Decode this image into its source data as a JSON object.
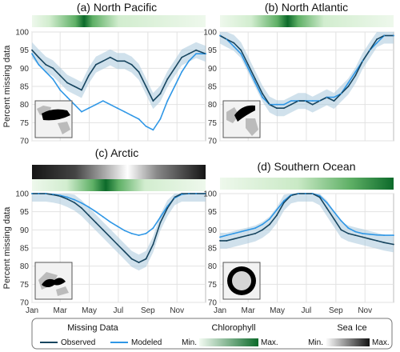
{
  "chart_data": [
    {
      "type": "line",
      "title": "(a) North Pacific",
      "ylabel": "Percent missing data",
      "ylim": [
        70,
        100
      ],
      "xlim": [
        1,
        365
      ],
      "top_bar": "chlorophyll",
      "top_bar_peak": [
        0.25,
        0.35
      ],
      "inset_map": "north-pacific",
      "series": [
        {
          "name": "Observed",
          "x": [
            1,
            15,
            30,
            45,
            60,
            75,
            90,
            105,
            120,
            135,
            150,
            165,
            180,
            195,
            210,
            225,
            240,
            255,
            270,
            285,
            300,
            315,
            330,
            345,
            365
          ],
          "values": [
            95,
            93,
            91,
            90,
            88,
            86,
            85,
            84,
            88,
            91,
            92,
            93,
            92,
            92,
            91,
            89,
            85,
            81,
            83,
            87,
            90,
            93,
            94,
            95,
            94
          ]
        },
        {
          "name": "Modeled",
          "x": [
            1,
            15,
            30,
            45,
            60,
            75,
            90,
            105,
            120,
            135,
            150,
            165,
            180,
            195,
            210,
            225,
            240,
            255,
            270,
            285,
            300,
            315,
            330,
            345,
            365
          ],
          "values": [
            94,
            91,
            89,
            87,
            84,
            82,
            80,
            78,
            79,
            80,
            81,
            80,
            79,
            78,
            77,
            76,
            74,
            73,
            76,
            81,
            85,
            89,
            92,
            94,
            94
          ]
        }
      ]
    },
    {
      "type": "line",
      "title": "(b) North Atlantic",
      "ylabel": "",
      "ylim": [
        70,
        100
      ],
      "xlim": [
        1,
        365
      ],
      "top_bar": "chlorophyll",
      "top_bar_peak": [
        0.33,
        0.45
      ],
      "inset_map": "north-atlantic",
      "series": [
        {
          "name": "Observed",
          "x": [
            1,
            15,
            30,
            45,
            60,
            75,
            90,
            105,
            120,
            135,
            150,
            165,
            180,
            195,
            210,
            225,
            240,
            255,
            270,
            285,
            300,
            315,
            330,
            345,
            365
          ],
          "values": [
            99,
            98,
            97,
            95,
            91,
            87,
            83,
            80,
            79,
            79,
            80,
            81,
            81,
            80,
            81,
            82,
            81,
            83,
            85,
            88,
            92,
            95,
            98,
            99,
            99
          ]
        },
        {
          "name": "Modeled",
          "x": [
            1,
            15,
            30,
            45,
            60,
            75,
            90,
            105,
            120,
            135,
            150,
            165,
            180,
            195,
            210,
            225,
            240,
            255,
            270,
            285,
            300,
            315,
            330,
            345,
            365
          ],
          "values": [
            99,
            98,
            96,
            94,
            90,
            86,
            82,
            80,
            80,
            80,
            81,
            81,
            81,
            81,
            81,
            82,
            82,
            83,
            86,
            89,
            92,
            95,
            97,
            99,
            99
          ]
        }
      ]
    },
    {
      "type": "line",
      "title": "(c) Arctic",
      "ylabel": "Percent missing data",
      "ylim": [
        70,
        100
      ],
      "xlim": [
        1,
        365
      ],
      "top_bar": "chlorophyll",
      "top_bar_peak": [
        0.35,
        0.5
      ],
      "sea_ice_bar": true,
      "inset_map": "arctic",
      "series": [
        {
          "name": "Observed",
          "x": [
            1,
            15,
            30,
            45,
            60,
            75,
            90,
            105,
            120,
            135,
            150,
            165,
            180,
            195,
            210,
            225,
            240,
            255,
            270,
            285,
            300,
            315,
            330,
            345,
            365
          ],
          "values": [
            100,
            100,
            100,
            99.7,
            99.3,
            98.5,
            97.5,
            96,
            94,
            92,
            90,
            88,
            86,
            84,
            82,
            81,
            82,
            86,
            92,
            96,
            99,
            100,
            100,
            100,
            100
          ]
        },
        {
          "name": "Modeled",
          "x": [
            1,
            15,
            30,
            45,
            60,
            75,
            90,
            105,
            120,
            135,
            150,
            165,
            180,
            195,
            210,
            225,
            240,
            255,
            270,
            285,
            300,
            315,
            330,
            345,
            365
          ],
          "values": [
            100,
            100,
            100,
            99.8,
            99.5,
            99,
            98.3,
            97.4,
            96.3,
            95,
            93.6,
            92.2,
            91,
            89.8,
            89,
            88.5,
            89,
            90.5,
            93.5,
            96.5,
            98.8,
            99.8,
            100,
            100,
            100
          ]
        }
      ]
    },
    {
      "type": "line",
      "title": "(d) Southern Ocean",
      "ylabel": "",
      "ylim": [
        70,
        100
      ],
      "xlim": [
        1,
        365
      ],
      "top_bar": "chlorophyll",
      "top_bar_peak": [
        0.85,
        1.0
      ],
      "inset_map": "southern-ocean",
      "series": [
        {
          "name": "Observed",
          "x": [
            1,
            15,
            30,
            45,
            60,
            75,
            90,
            105,
            120,
            135,
            150,
            165,
            180,
            195,
            210,
            225,
            240,
            255,
            270,
            285,
            300,
            315,
            330,
            345,
            365
          ],
          "values": [
            87,
            87,
            87.5,
            88,
            88.5,
            89,
            90,
            91.5,
            94,
            97.5,
            99.5,
            100,
            100,
            100,
            99,
            96,
            93,
            90,
            89,
            88.5,
            88,
            87.5,
            87,
            86.5,
            86
          ]
        },
        {
          "name": "Modeled",
          "x": [
            1,
            15,
            30,
            45,
            60,
            75,
            90,
            105,
            120,
            135,
            150,
            165,
            180,
            195,
            210,
            225,
            240,
            255,
            270,
            285,
            300,
            315,
            330,
            345,
            365
          ],
          "values": [
            88,
            88.5,
            89,
            89.5,
            90,
            90.5,
            91.5,
            93,
            95.5,
            98,
            99.6,
            100,
            100,
            100,
            99.4,
            97.5,
            95,
            92.5,
            90.5,
            89.5,
            89,
            88.8,
            88.6,
            88.5,
            88.5
          ]
        }
      ]
    }
  ],
  "x_ticks": {
    "labels": [
      "Jan",
      "Mar",
      "May",
      "Jul",
      "Sep",
      "Nov"
    ],
    "days": [
      1,
      60,
      121,
      182,
      244,
      305
    ]
  },
  "y_ticks": [
    70,
    75,
    80,
    85,
    90,
    95,
    100
  ],
  "legend": {
    "missing_header": "Missing Data",
    "observed_label": "Observed",
    "modeled_label": "Modeled",
    "chl_header": "Chlorophyll",
    "chl_min": "Min.",
    "chl_max": "Max.",
    "ice_header": "Sea Ice",
    "ice_min": "Min.",
    "ice_max": "Max."
  },
  "colors": {
    "observed": "#17455f",
    "modeled": "#2f97e6",
    "band": "#a9c9dc",
    "chl_light": "#f0f9ef",
    "chl_dark": "#0c6a2a",
    "ice_dark": "#111111"
  }
}
